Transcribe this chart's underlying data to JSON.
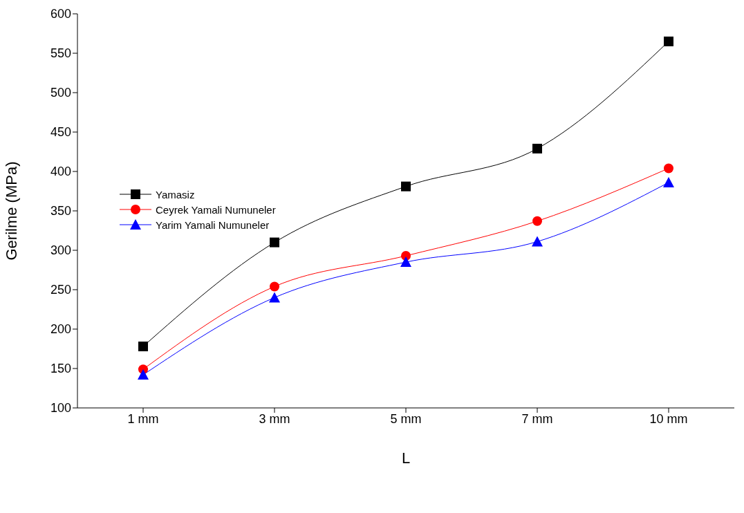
{
  "chart_data": {
    "type": "line",
    "xlabel": "L",
    "ylabel": "Gerilme (MPa)",
    "categories": [
      "1 mm",
      "3 mm",
      "5 mm",
      "7 mm",
      "10 mm"
    ],
    "series": [
      {
        "name": "Yamasiz",
        "color": "#000000",
        "marker": "square",
        "values": [
          178,
          310,
          381,
          429,
          565
        ]
      },
      {
        "name": "Ceyrek Yamali Numuneler",
        "color": "#ff0000",
        "marker": "circle",
        "values": [
          149,
          254,
          293,
          337,
          404
        ]
      },
      {
        "name": "Yarim Yamali Numuneler",
        "color": "#0000ff",
        "marker": "triangle",
        "values": [
          142,
          240,
          285,
          311,
          386
        ]
      }
    ],
    "ylim": [
      100,
      600
    ],
    "yticks": [
      100,
      150,
      200,
      250,
      300,
      350,
      400,
      450,
      500,
      550,
      600
    ],
    "grid": false,
    "legend": "left",
    "line_style": "solid"
  }
}
